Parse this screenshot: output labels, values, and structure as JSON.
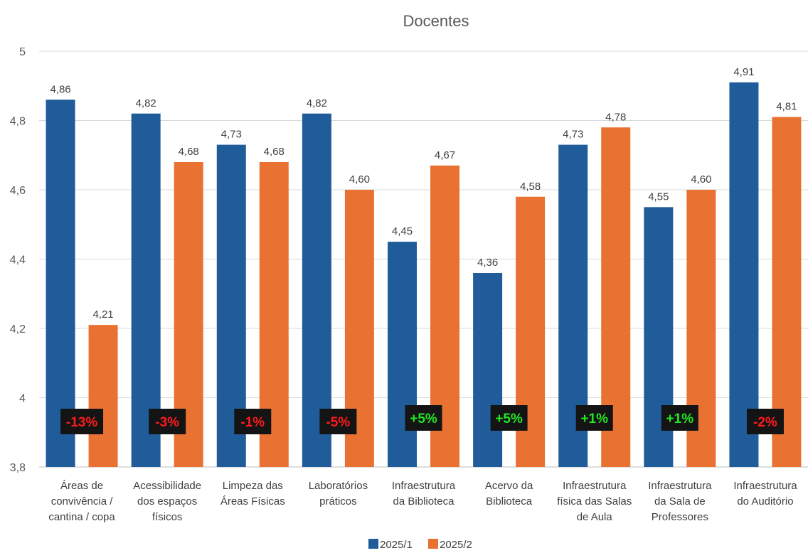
{
  "chart_data": {
    "type": "bar",
    "title": "Docentes",
    "categories": [
      [
        "Áreas de",
        "convivência /",
        "cantina / copa"
      ],
      [
        "Acessibilidade",
        "dos espaços",
        "físicos"
      ],
      [
        "Limpeza das",
        "Áreas Físicas"
      ],
      [
        "Laboratórios",
        "práticos"
      ],
      [
        "Infraestrutura",
        "da Biblioteca"
      ],
      [
        "Acervo da",
        "Biblioteca"
      ],
      [
        "Infraestrutura",
        "física das Salas",
        "de Aula"
      ],
      [
        "Infraestrutura",
        "da Sala de",
        "Professores"
      ],
      [
        "Infraestrutura",
        "do Auditório"
      ]
    ],
    "series": [
      {
        "name": "2025/1",
        "color": "#1F5C99",
        "values": [
          4.86,
          4.82,
          4.73,
          4.82,
          4.45,
          4.36,
          4.73,
          4.55,
          4.91
        ],
        "labels": [
          "4,86",
          "4,82",
          "4,73",
          "4,82",
          "4,45",
          "4,36",
          "4,73",
          "4,55",
          "4,91"
        ]
      },
      {
        "name": "2025/2",
        "color": "#E97132",
        "values": [
          4.21,
          4.68,
          4.68,
          4.6,
          4.67,
          4.58,
          4.78,
          4.6,
          4.81
        ],
        "labels": [
          "4,21",
          "4,68",
          "4,68",
          "4,60",
          "4,67",
          "4,58",
          "4,78",
          "4,60",
          "4,81"
        ]
      }
    ],
    "change_labels": [
      "-13%",
      "-3%",
      "-1%",
      "-5%",
      "+5%",
      "+5%",
      "+1%",
      "+1%",
      "-2%"
    ],
    "change_colors": {
      "negative": "#FF1A1A",
      "positive": "#22E622",
      "badge_bg": "#141414"
    },
    "ylim": [
      3.8,
      5
    ],
    "yticks": [
      "3,8",
      "4",
      "4,2",
      "4,4",
      "4,6",
      "4,8",
      "5"
    ],
    "grid": true,
    "legend_position": "bottom"
  }
}
